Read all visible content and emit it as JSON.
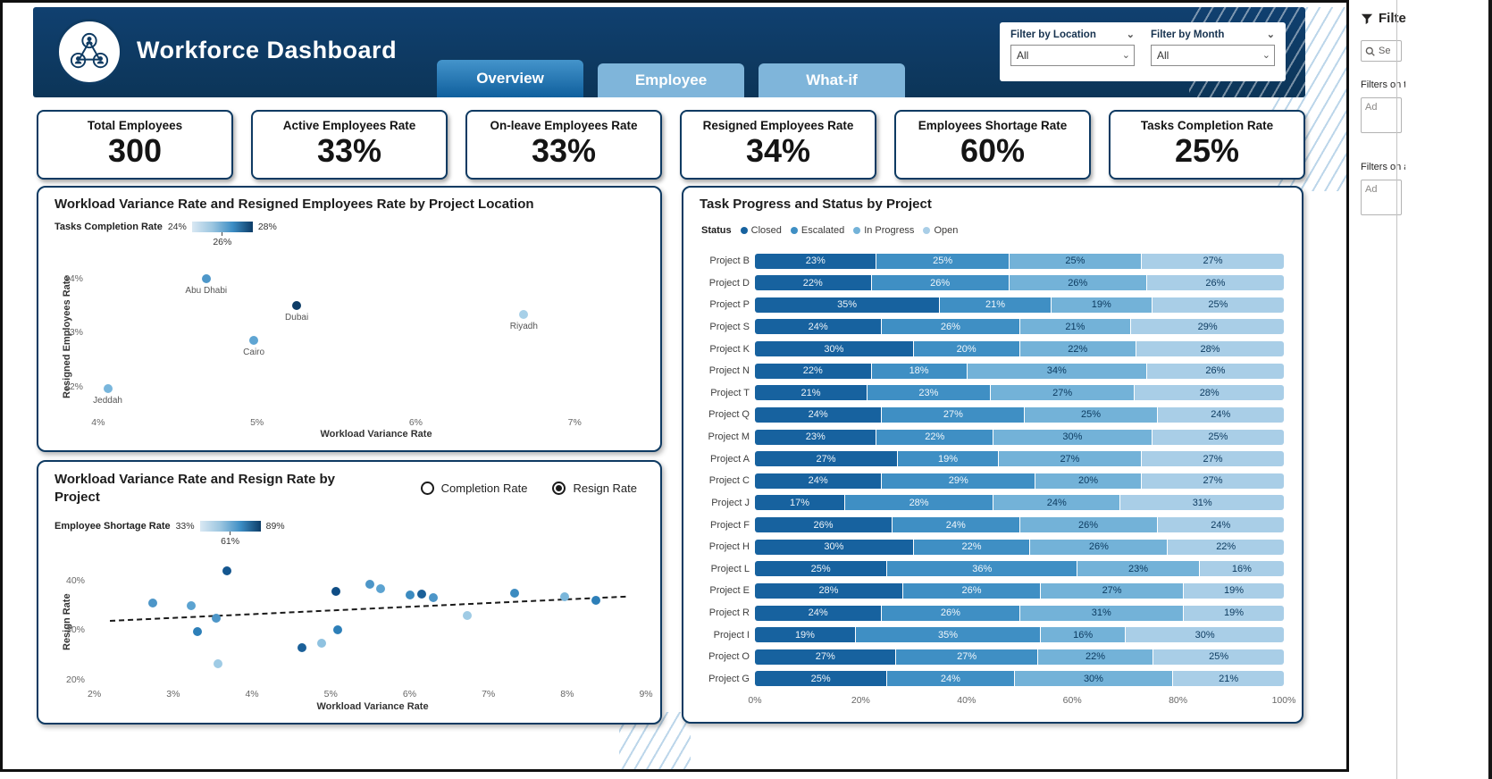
{
  "header": {
    "title": "Workforce Dashboard",
    "tabs": [
      {
        "label": "Overview",
        "active": true
      },
      {
        "label": "Employee",
        "active": false
      },
      {
        "label": "What-if",
        "active": false
      }
    ],
    "filters": [
      {
        "label": "Filter by Location",
        "value": "All"
      },
      {
        "label": "Filter by Month",
        "value": "All"
      }
    ]
  },
  "kpis": [
    {
      "label": "Total Employees",
      "value": "300"
    },
    {
      "label": "Active Employees Rate",
      "value": "33%"
    },
    {
      "label": "On-leave Employees Rate",
      "value": "33%"
    },
    {
      "label": "Resigned Employees Rate",
      "value": "34%"
    },
    {
      "label": "Employees Shortage Rate",
      "value": "60%"
    },
    {
      "label": "Tasks Completion Rate",
      "value": "25%"
    }
  ],
  "chart_data": [
    {
      "type": "scatter",
      "title": "Workload Variance Rate and Resigned Employees Rate by Project Location",
      "xlabel": "Workload Variance Rate",
      "ylabel": "Resigned Employees Rate",
      "color_legend": {
        "label": "Tasks Completion Rate",
        "min": "24%",
        "mid": "26%",
        "max": "28%"
      },
      "xlim": [
        3.95,
        7.55
      ],
      "ylim": [
        31.55,
        34.3
      ],
      "xticks": [
        4,
        5,
        6,
        7
      ],
      "yticks": [
        32,
        33,
        34
      ],
      "points": [
        {
          "label": "Abu Dhabi",
          "x": 4.68,
          "y": 34.0,
          "color": "#4e97c9"
        },
        {
          "label": "Dubai",
          "x": 5.25,
          "y": 33.5,
          "color": "#0d3c66"
        },
        {
          "label": "Cairo",
          "x": 4.98,
          "y": 32.86,
          "color": "#5fa5d3"
        },
        {
          "label": "Riyadh",
          "x": 6.68,
          "y": 33.34,
          "color": "#a7d0e8"
        },
        {
          "label": "Jeddah",
          "x": 4.06,
          "y": 31.96,
          "color": "#79b6dc"
        }
      ]
    },
    {
      "type": "scatter",
      "title": "Workload Variance Rate and Resign Rate by Project",
      "xlabel": "Workload Variance Rate",
      "ylabel": "Resign Rate",
      "toggle": [
        {
          "label": "Completion Rate",
          "selected": false
        },
        {
          "label": "Resign Rate",
          "selected": true
        }
      ],
      "color_legend": {
        "label": "Employee Shortage Rate",
        "min": "33%",
        "mid": "61%",
        "max": "89%"
      },
      "xlim": [
        1.97,
        9.09
      ],
      "ylim": [
        19.46,
        43.78
      ],
      "xticks": [
        2,
        3,
        4,
        5,
        6,
        7,
        8,
        9
      ],
      "yticks": [
        20,
        30,
        40
      ],
      "trend": {
        "x1": 2.2,
        "y1": 32.1,
        "x2": 8.75,
        "y2": 37.0
      },
      "points": [
        {
          "x": 2.74,
          "y": 35.5,
          "color": "#4d96c8"
        },
        {
          "x": 3.23,
          "y": 34.9,
          "color": "#5ca3d1"
        },
        {
          "x": 3.31,
          "y": 29.8,
          "color": "#2d7fb8"
        },
        {
          "x": 3.55,
          "y": 32.5,
          "color": "#4d96c8"
        },
        {
          "x": 3.57,
          "y": 23.2,
          "color": "#9fcbe5"
        },
        {
          "x": 3.68,
          "y": 41.9,
          "color": "#14568f"
        },
        {
          "x": 4.63,
          "y": 26.5,
          "color": "#1b6099"
        },
        {
          "x": 4.88,
          "y": 27.3,
          "color": "#8fc2e0"
        },
        {
          "x": 5.07,
          "y": 37.8,
          "color": "#0f4d85"
        },
        {
          "x": 5.09,
          "y": 30.1,
          "color": "#2d7fb8"
        },
        {
          "x": 5.5,
          "y": 39.3,
          "color": "#4d96c8"
        },
        {
          "x": 5.63,
          "y": 38.4,
          "color": "#5ca3d1"
        },
        {
          "x": 6.01,
          "y": 37.1,
          "color": "#3c8bc0"
        },
        {
          "x": 6.15,
          "y": 37.3,
          "color": "#1b6099"
        },
        {
          "x": 6.3,
          "y": 36.5,
          "color": "#4d96c8"
        },
        {
          "x": 6.73,
          "y": 32.9,
          "color": "#9fcbe5"
        },
        {
          "x": 7.33,
          "y": 37.5,
          "color": "#3c8bc0"
        },
        {
          "x": 7.97,
          "y": 36.8,
          "color": "#7ab6da"
        },
        {
          "x": 8.36,
          "y": 36.1,
          "color": "#2d7fb8"
        }
      ]
    },
    {
      "type": "stacked-bar",
      "title": "Task Progress and Status by Project",
      "legend_title": "Status",
      "series": [
        "Closed",
        "Escalated",
        "In Progress",
        "Open"
      ],
      "colors": [
        "#17629f",
        "#3f8fc4",
        "#73b2d8",
        "#a9cee7"
      ],
      "categories": [
        "Project B",
        "Project D",
        "Project P",
        "Project S",
        "Project K",
        "Project N",
        "Project T",
        "Project Q",
        "Project M",
        "Project A",
        "Project C",
        "Project J",
        "Project F",
        "Project H",
        "Project L",
        "Project E",
        "Project R",
        "Project I",
        "Project O",
        "Project G"
      ],
      "values": [
        [
          23,
          25,
          25,
          27
        ],
        [
          22,
          26,
          26,
          26
        ],
        [
          35,
          21,
          19,
          25
        ],
        [
          24,
          26,
          21,
          29
        ],
        [
          30,
          20,
          22,
          28
        ],
        [
          22,
          18,
          34,
          26
        ],
        [
          21,
          23,
          27,
          28
        ],
        [
          24,
          27,
          25,
          24
        ],
        [
          23,
          22,
          30,
          25
        ],
        [
          27,
          19,
          27,
          27
        ],
        [
          24,
          29,
          20,
          27
        ],
        [
          17,
          28,
          24,
          31
        ],
        [
          26,
          24,
          26,
          24
        ],
        [
          30,
          22,
          26,
          22
        ],
        [
          25,
          36,
          23,
          16
        ],
        [
          28,
          26,
          27,
          19
        ],
        [
          24,
          26,
          31,
          19
        ],
        [
          19,
          35,
          16,
          30
        ],
        [
          27,
          27,
          22,
          25
        ],
        [
          25,
          24,
          30,
          21
        ]
      ],
      "xticks": [
        "0%",
        "20%",
        "40%",
        "60%",
        "80%",
        "100%"
      ]
    }
  ],
  "filter_pane": {
    "title": "Filte",
    "search": "Se",
    "section1": "Filters on t",
    "add1": "Ad",
    "section2": "Filters on a",
    "add2": "Ad"
  }
}
